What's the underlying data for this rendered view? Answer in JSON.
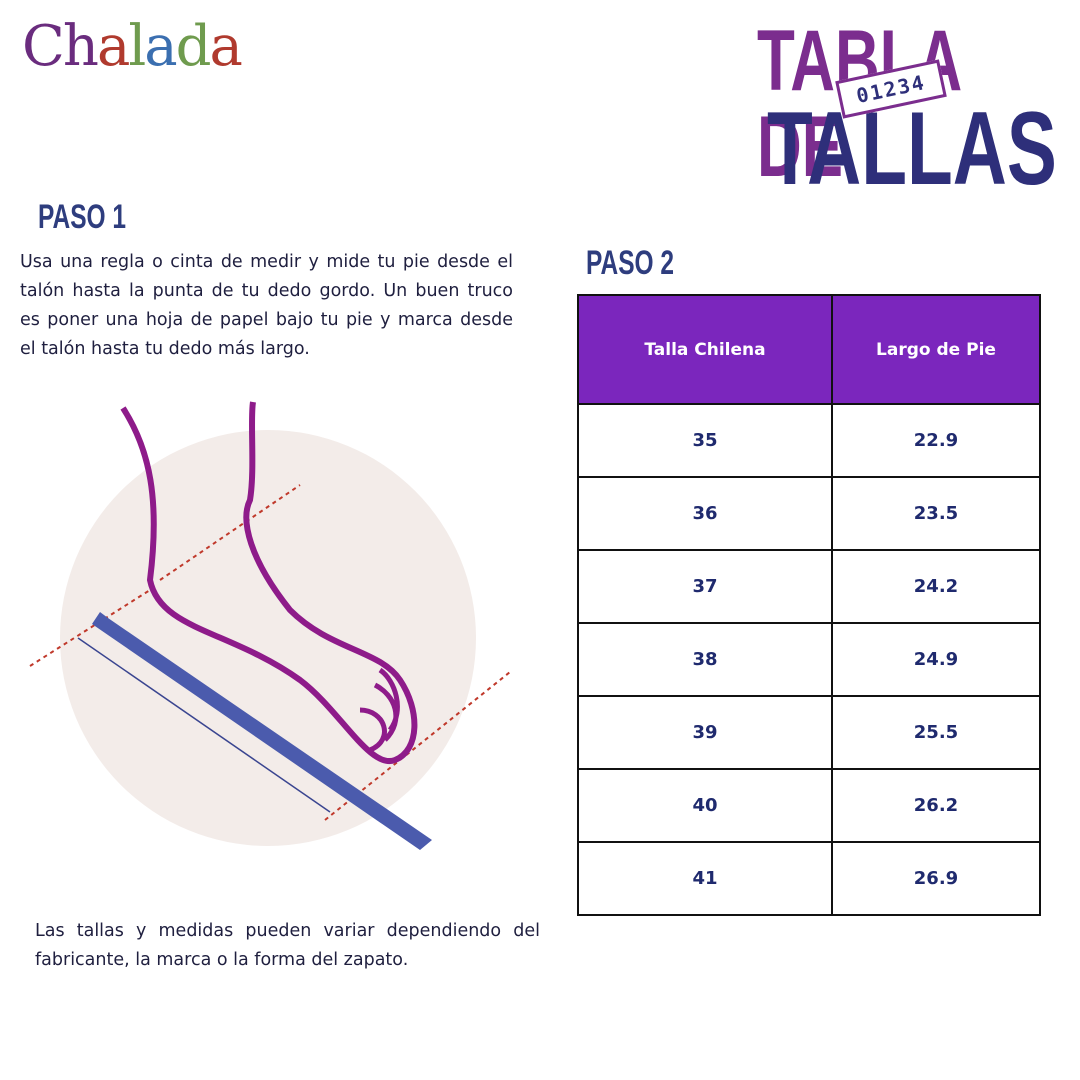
{
  "logo": "Chalada",
  "header": {
    "title_line1": "TABLA DE",
    "ruler_label": "01234",
    "title_line2": "TALLAS"
  },
  "step1": {
    "heading": "PASO 1",
    "text": "Usa una regla o cinta de medir y mide tu pie desde el talón hasta la punta de tu dedo gordo. Un buen truco es poner una hoja de papel bajo tu pie y marca desde el talón hasta tu dedo más largo."
  },
  "step2": {
    "heading": "PASO 2"
  },
  "table": {
    "columns": [
      "Talla Chilena",
      "Largo de Pie"
    ],
    "rows": [
      [
        "35",
        "22.9"
      ],
      [
        "36",
        "23.5"
      ],
      [
        "37",
        "24.2"
      ],
      [
        "38",
        "24.9"
      ],
      [
        "39",
        "25.5"
      ],
      [
        "40",
        "26.2"
      ],
      [
        "41",
        "26.9"
      ]
    ]
  },
  "note": "Las tallas y medidas pueden variar dependiendo del fabricante, la marca o la forma del zapato."
}
